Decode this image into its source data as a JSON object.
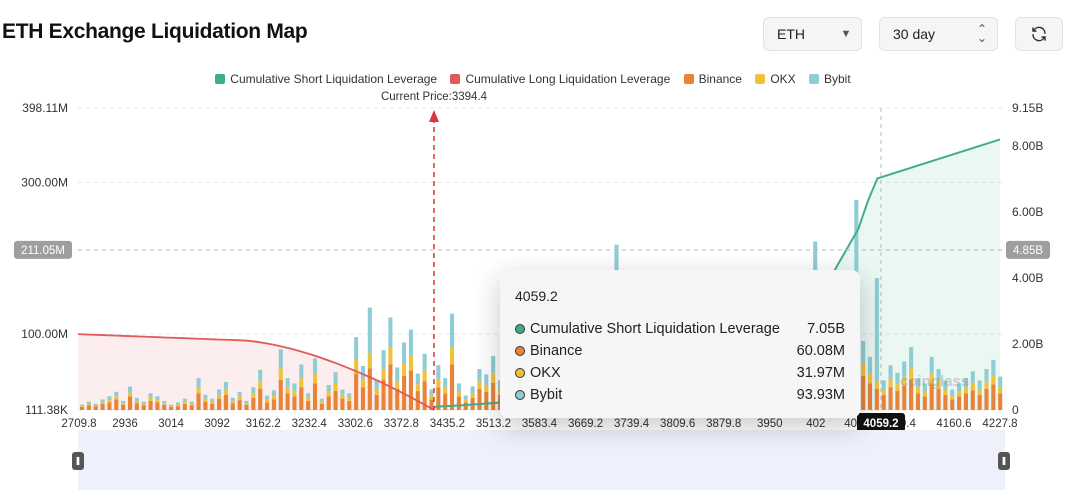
{
  "header": {
    "title": "ETH Exchange Liquidation Map",
    "asset_value": "ETH",
    "period_value": "30 day"
  },
  "legend": [
    {
      "label": "Cumulative Short Liquidation Leverage",
      "color": "#3fae8c"
    },
    {
      "label": "Cumulative Long Liquidation Leverage",
      "color": "#e05a5a"
    },
    {
      "label": "Binance",
      "color": "#e8833a"
    },
    {
      "label": "OKX",
      "color": "#f0c23b"
    },
    {
      "label": "Bybit",
      "color": "#8fcdd4"
    }
  ],
  "chart_data": {
    "type": "bar",
    "current_price_label": "Current Price:3394.4",
    "current_price": 3394.4,
    "x_ticks": [
      "2709.8",
      "2936",
      "3014",
      "3092",
      "3162.2",
      "3232.4",
      "3302.6",
      "3372.8",
      "3435.2",
      "3513.2",
      "3583.4",
      "3669.2",
      "3739.4",
      "3809.6",
      "3879.8",
      "3950",
      "402",
      "4059.2",
      "0.4",
      "4160.6",
      "4227.8"
    ],
    "y_left_ticks": [
      "398.11M",
      "300.00M",
      "",
      "100.00M",
      "111.38K"
    ],
    "y_left_ylim": [
      0,
      398.11
    ],
    "y_right_ticks": [
      "9.15B",
      "8.00B",
      "6.00B",
      "4.00B",
      "2.00B",
      "0"
    ],
    "y_right_ylim": [
      0,
      9.15
    ],
    "crosshair": {
      "left_value": "211.05M",
      "right_value": "4.85B",
      "x_value": "4059.2"
    },
    "grid": true,
    "watermark": "coinglass",
    "bars": {
      "binance": [
        4,
        6,
        5,
        8,
        10,
        14,
        7,
        18,
        9,
        6,
        12,
        10,
        7,
        4,
        5,
        8,
        6,
        22,
        11,
        8,
        15,
        20,
        9,
        13,
        7,
        16,
        28,
        10,
        14,
        40,
        22,
        18,
        30,
        12,
        35,
        8,
        18,
        25,
        15,
        12,
        48,
        30,
        55,
        20,
        40,
        60,
        28,
        45,
        52,
        25,
        38,
        14,
        30,
        22,
        60,
        18,
        10,
        16,
        28,
        24,
        36,
        20,
        14,
        28,
        40,
        22,
        30,
        12,
        20,
        32,
        48,
        26,
        18,
        12,
        8,
        22,
        35,
        28,
        50,
        42,
        18,
        12,
        10,
        20,
        60,
        30,
        24,
        30,
        28,
        15,
        26,
        20,
        24,
        32,
        40,
        22,
        18,
        28,
        30,
        14,
        12,
        24,
        28,
        18,
        10,
        14,
        8,
        12,
        16,
        10,
        20,
        15,
        22,
        60,
        45,
        35,
        28,
        20,
        30,
        25,
        32,
        40,
        22,
        18,
        35,
        28,
        20,
        14,
        18,
        22,
        26,
        20,
        28,
        34,
        22
      ],
      "okx": [
        1,
        2,
        1,
        2,
        3,
        4,
        2,
        5,
        3,
        2,
        4,
        3,
        2,
        1,
        2,
        3,
        2,
        8,
        4,
        3,
        5,
        7,
        3,
        5,
        2,
        6,
        10,
        4,
        5,
        15,
        8,
        7,
        12,
        4,
        13,
        3,
        6,
        10,
        5,
        4,
        18,
        10,
        20,
        8,
        14,
        22,
        10,
        16,
        19,
        9,
        14,
        5,
        11,
        8,
        22,
        7,
        4,
        6,
        10,
        9,
        13,
        7,
        5,
        10,
        15,
        8,
        11,
        4,
        7,
        12,
        18,
        10,
        7,
        4,
        3,
        8,
        13,
        10,
        18,
        15,
        7,
        4,
        4,
        8,
        22,
        11,
        9,
        11,
        10,
        6,
        10,
        8,
        9,
        12,
        15,
        8,
        7,
        10,
        11,
        5,
        4,
        9,
        10,
        7,
        4,
        5,
        3,
        4,
        6,
        4,
        8,
        5,
        8,
        22,
        16,
        13,
        10,
        7,
        11,
        9,
        12,
        15,
        8,
        7,
        13,
        10,
        7,
        5,
        7,
        8,
        10,
        7,
        10,
        12,
        8
      ],
      "bybit": [
        2,
        3,
        2,
        4,
        5,
        6,
        3,
        8,
        4,
        3,
        6,
        5,
        3,
        2,
        3,
        4,
        3,
        12,
        5,
        4,
        7,
        10,
        4,
        6,
        3,
        8,
        15,
        5,
        7,
        25,
        12,
        10,
        18,
        6,
        20,
        4,
        9,
        15,
        7,
        6,
        30,
        18,
        60,
        12,
        25,
        40,
        18,
        28,
        35,
        14,
        22,
        8,
        18,
        12,
        45,
        10,
        5,
        9,
        16,
        14,
        22,
        12,
        8,
        16,
        28,
        12,
        18,
        6,
        11,
        20,
        30,
        16,
        10,
        6,
        4,
        12,
        22,
        16,
        32,
        26,
        10,
        6,
        5,
        12,
        40,
        18,
        14,
        20,
        16,
        8,
        15,
        12,
        14,
        20,
        26,
        12,
        10,
        16,
        18,
        8,
        6,
        14,
        16,
        10,
        5,
        7,
        4,
        6,
        9,
        5,
        12,
        8,
        14,
        40,
        30,
        22,
        16,
        12,
        18,
        15,
        20,
        28,
        12,
        10,
        22,
        16,
        12,
        8,
        10,
        12,
        15,
        12,
        16,
        20,
        14
      ]
    },
    "spikes": {
      "3669.2": 118,
      "3950": 200,
      "4059.2": 120,
      "4020": 155
    },
    "long_cumulative_m": [
      100,
      55
    ],
    "short_cumulative_b": [
      0.1,
      8.2
    ]
  }
}
